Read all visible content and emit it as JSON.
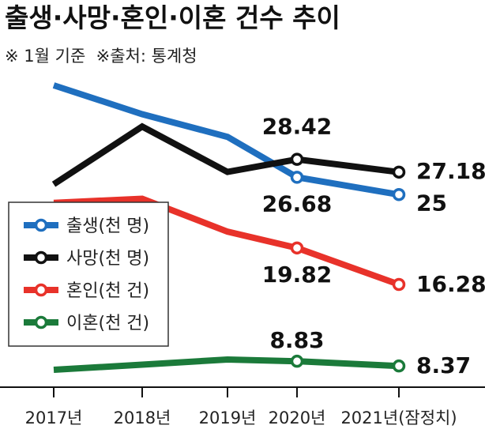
{
  "chart_data": {
    "type": "line",
    "title": "출생·사망·혼인·이혼 건수 추이",
    "subtitle": "※ 1월 기준  ※출처: 통계청",
    "categories": [
      "2017년",
      "2018년",
      "2019년",
      "2020년",
      "2021년(잠정치)"
    ],
    "series": [
      {
        "name": "출생(천 명)",
        "color": "#1f6fbf",
        "values": [
          35.6,
          32.8,
          30.6,
          26.68,
          25
        ]
      },
      {
        "name": "사망(천 명)",
        "color": "#111111",
        "values": [
          26.0,
          31.6,
          27.2,
          28.42,
          27.18
        ]
      },
      {
        "name": "혼인(천 건)",
        "color": "#e8322a",
        "values": [
          24.2,
          24.6,
          21.4,
          19.82,
          16.28
        ]
      },
      {
        "name": "이혼(천 건)",
        "color": "#1b7a3a",
        "values": [
          8.0,
          8.5,
          9.0,
          8.83,
          8.37
        ]
      }
    ],
    "value_labels": [
      {
        "series": 1,
        "index": 3,
        "text": "28.42"
      },
      {
        "series": 0,
        "index": 3,
        "text": "26.68"
      },
      {
        "series": 2,
        "index": 3,
        "text": "19.82"
      },
      {
        "series": 3,
        "index": 3,
        "text": "8.83"
      },
      {
        "series": 1,
        "index": 4,
        "text": "27.18"
      },
      {
        "series": 0,
        "index": 4,
        "text": "25"
      },
      {
        "series": 2,
        "index": 4,
        "text": "16.28"
      },
      {
        "series": 3,
        "index": 4,
        "text": "8.37"
      }
    ],
    "grid": false,
    "legend": "left",
    "ylim": [
      5,
      38
    ]
  }
}
